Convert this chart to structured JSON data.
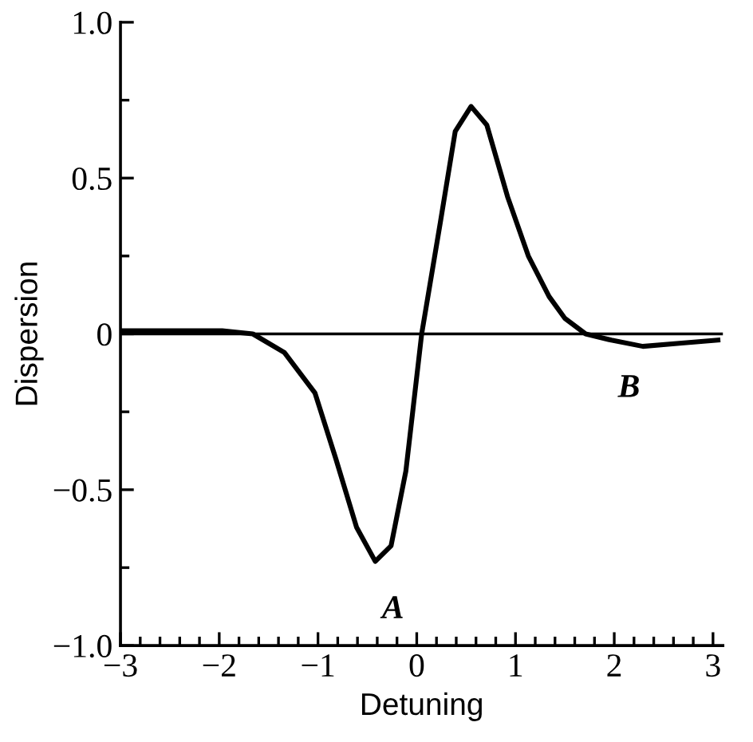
{
  "chart_data": {
    "type": "line",
    "xlabel": "Detuning",
    "ylabel": "Dispersion",
    "x": [
      -3,
      -1.97,
      -1.66,
      -1.34,
      -1.03,
      -0.82,
      -0.61,
      -0.42,
      -0.26,
      -0.11,
      0.05,
      0.24,
      0.39,
      0.55,
      0.71,
      0.92,
      1.13,
      1.34,
      1.5,
      1.71,
      1.97,
      2.29,
      2.66,
      3.05
    ],
    "series": [
      {
        "color": "#000000",
        "values": [
          0.01,
          0.01,
          0,
          -0.06,
          -0.19,
          -0.4,
          -0.62,
          -0.73,
          -0.68,
          -0.44,
          0,
          0.36,
          0.65,
          0.73,
          0.67,
          0.44,
          0.25,
          0.12,
          0.05,
          0,
          -0.02,
          -0.04,
          -0.03,
          -0.02
        ]
      }
    ],
    "xlim": [
      -3,
      3.1
    ],
    "ylim": [
      -1.0,
      1.0
    ],
    "xticks": [
      {
        "value": -3,
        "label": "−3"
      },
      {
        "value": -2,
        "label": "−2"
      },
      {
        "value": -1,
        "label": "−1"
      },
      0,
      1,
      2,
      3
    ],
    "yticks": [
      {
        "value": -1.0,
        "label": "−1.0"
      },
      {
        "value": -0.5,
        "label": "−0.5"
      },
      0,
      0.5,
      {
        "value": 1.0,
        "label": "1.0"
      }
    ],
    "ref_lines": [
      {
        "axis": "y",
        "value": 0,
        "color": "#000000"
      }
    ],
    "annotations": [
      {
        "text": "A",
        "x": -0.42,
        "y": -0.73
      },
      {
        "text": "B",
        "x": 1.97,
        "y": -0.02
      }
    ],
    "grid": false,
    "legend": false,
    "marker": "none",
    "line_style": "solid"
  }
}
